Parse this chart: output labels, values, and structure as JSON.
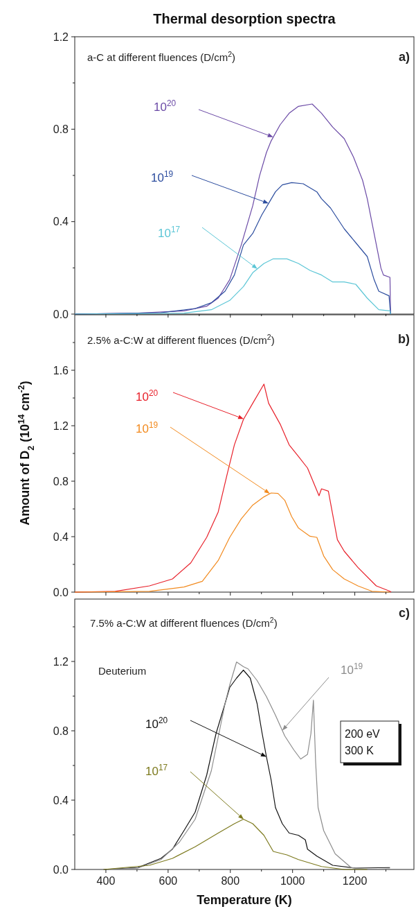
{
  "chart_data": [
    {
      "type": "line",
      "title": "Thermal desorption spectra",
      "xlim": [
        300,
        1390
      ],
      "ylim": [
        0,
        1.2
      ],
      "xticks": [
        400,
        {
          "value": 500,
          "label": null
        },
        600,
        {
          "value": 700,
          "label": null
        },
        800,
        {
          "value": 900,
          "label": null
        },
        1000,
        {
          "value": 1100,
          "label": null
        },
        1200,
        {
          "value": 1300,
          "label": null
        }
      ],
      "yticks": [
        {
          "value": 0,
          "label": "0.0"
        },
        {
          "value": 0.2,
          "label": null
        },
        {
          "value": 0.4,
          "label": "0.4"
        },
        {
          "value": 0.6,
          "label": null
        },
        {
          "value": 0.8,
          "label": "0.8"
        },
        {
          "value": 1.0,
          "label": null
        },
        {
          "value": 1.2,
          "label": "1.2"
        }
      ],
      "tick_labels": "y",
      "annotations": [
        "a-C at different fluences (D/cm$^{2}$)",
        "a)"
      ],
      "series": [
        {
          "name": "10$^{20}$",
          "color": "#6b4aa6",
          "x": [
            300,
            503,
            651,
            724,
            761,
            798,
            835,
            872,
            894,
            916,
            931,
            960,
            989,
            1019,
            1063,
            1093,
            1129,
            1166,
            1196,
            1225,
            1240,
            1262,
            1284,
            1292,
            1313,
            1315
          ],
          "values": [
            0,
            0.004,
            0.014,
            0.034,
            0.069,
            0.149,
            0.299,
            0.469,
            0.599,
            0.699,
            0.749,
            0.819,
            0.869,
            0.899,
            0.909,
            0.869,
            0.809,
            0.759,
            0.679,
            0.579,
            0.499,
            0.349,
            0.199,
            0.169,
            0.159,
            0
          ]
        },
        {
          "name": "10$^{19}$",
          "color": "#2b4c9e",
          "x": [
            300,
            577,
            687,
            739,
            783,
            813,
            842,
            872,
            901,
            923,
            945,
            967,
            997,
            1034,
            1078,
            1093,
            1122,
            1166,
            1203,
            1240,
            1262,
            1277,
            1310,
            1315
          ],
          "values": [
            0,
            0.006,
            0.024,
            0.049,
            0.099,
            0.169,
            0.299,
            0.349,
            0.429,
            0.479,
            0.529,
            0.559,
            0.569,
            0.564,
            0.529,
            0.499,
            0.459,
            0.369,
            0.309,
            0.249,
            0.149,
            0.099,
            0.079,
            0
          ]
        },
        {
          "name": "10$^{17}$",
          "color": "#5cc6d6",
          "x": [
            300,
            651,
            739,
            798,
            842,
            872,
            908,
            938,
            982,
            1019,
            1056,
            1093,
            1129,
            1166,
            1203,
            1240,
            1277,
            1313,
            1315
          ],
          "values": [
            0,
            0.004,
            0.019,
            0.059,
            0.119,
            0.179,
            0.219,
            0.239,
            0.239,
            0.219,
            0.189,
            0.169,
            0.139,
            0.139,
            0.129,
            0.069,
            0.019,
            0.014,
            0
          ]
        }
      ]
    },
    {
      "type": "line",
      "ylabel": "Amount of D$_{2}$ (10$^{14}$ cm$^{-2}$)",
      "xlim": [
        300,
        1390
      ],
      "ylim": [
        0,
        2.0
      ],
      "xticks": [
        400,
        {
          "value": 500,
          "label": null
        },
        600,
        {
          "value": 700,
          "label": null
        },
        800,
        {
          "value": 900,
          "label": null
        },
        1000,
        {
          "value": 1100,
          "label": null
        },
        1200,
        {
          "value": 1300,
          "label": null
        }
      ],
      "yticks": [
        {
          "value": 0,
          "label": "0.0"
        },
        {
          "value": 0.2,
          "label": null
        },
        {
          "value": 0.4,
          "label": "0.4"
        },
        {
          "value": 0.6,
          "label": null
        },
        {
          "value": 0.8,
          "label": "0.8"
        },
        {
          "value": 1.0,
          "label": null
        },
        {
          "value": 1.2,
          "label": "1.2"
        },
        {
          "value": 1.4,
          "label": null
        },
        {
          "value": 1.6,
          "label": "1.6"
        },
        {
          "value": 1.8,
          "label": null
        }
      ],
      "tick_labels": "y",
      "annotations": [
        "2.5% a-C:W at different fluences (D/cm$^{2}$)",
        "b)"
      ],
      "series": [
        {
          "name": "10$^{20}$",
          "color": "#e8202a",
          "x": [
            300,
            430,
            540,
            614,
            673,
            724,
            761,
            791,
            813,
            842,
            872,
            908,
            923,
            960,
            989,
            1019,
            1048,
            1085,
            1093,
            1115,
            1144,
            1166,
            1210,
            1269,
            1313,
            1317
          ],
          "values": [
            0,
            0.006,
            0.045,
            0.095,
            0.211,
            0.395,
            0.578,
            0.862,
            1.062,
            1.245,
            1.362,
            1.5,
            1.362,
            1.212,
            1.062,
            0.978,
            0.895,
            0.695,
            0.745,
            0.728,
            0.378,
            0.295,
            0.178,
            0.045,
            0.006,
            0
          ]
        },
        {
          "name": "10$^{19}$",
          "color": "#f28a1e",
          "x": [
            300,
            540,
            651,
            710,
            761,
            798,
            835,
            872,
            908,
            931,
            953,
            975,
            997,
            1019,
            1056,
            1078,
            1100,
            1129,
            1166,
            1210,
            1255,
            1313
          ],
          "values": [
            0,
            0.006,
            0.037,
            0.078,
            0.228,
            0.395,
            0.528,
            0.628,
            0.687,
            0.715,
            0.712,
            0.662,
            0.545,
            0.462,
            0.403,
            0.395,
            0.261,
            0.162,
            0.095,
            0.045,
            0.006,
            0
          ]
        }
      ]
    },
    {
      "type": "line",
      "xlabel": "Temperature (K)",
      "xlim": [
        300,
        1390
      ],
      "ylim": [
        0,
        1.56
      ],
      "xticks": [
        400,
        {
          "value": 500,
          "label": null
        },
        600,
        {
          "value": 700,
          "label": null
        },
        800,
        {
          "value": 900,
          "label": null
        },
        1000,
        {
          "value": 1100,
          "label": null
        },
        1200,
        {
          "value": 1300,
          "label": null
        }
      ],
      "yticks": [
        {
          "value": 0,
          "label": "0.0"
        },
        {
          "value": 0.2,
          "label": null
        },
        {
          "value": 0.4,
          "label": "0.4"
        },
        {
          "value": 0.6,
          "label": null
        },
        {
          "value": 0.8,
          "label": "0.8"
        },
        {
          "value": 1.0,
          "label": null
        },
        {
          "value": 1.2,
          "label": "1.2"
        },
        {
          "value": 1.4,
          "label": null
        }
      ],
      "annotations": [
        "7.5% a-C:W at different fluences (D/cm$^{2}$)",
        "c)",
        "Deuterium",
        "200 eV\n300 K"
      ],
      "series": [
        {
          "name": "10$^{20}$",
          "color": "#111111",
          "x": [
            393,
            503,
            577,
            614,
            651,
            687,
            724,
            754,
            783,
            798,
            820,
            842,
            864,
            886,
            901,
            916,
            931,
            945,
            967,
            989,
            1019,
            1041,
            1048,
            1078,
            1129,
            1203,
            1313
          ],
          "values": [
            0,
            0.011,
            0.064,
            0.117,
            0.224,
            0.331,
            0.544,
            0.784,
            0.957,
            1.05,
            1.104,
            1.15,
            1.104,
            0.957,
            0.797,
            0.65,
            0.517,
            0.357,
            0.264,
            0.21,
            0.197,
            0.171,
            0.117,
            0.077,
            0.024,
            0.008,
            0.011
          ]
        },
        {
          "name": "10$^{19}$",
          "color": "#8c8c8c",
          "x": [
            393,
            503,
            577,
            636,
            687,
            739,
            783,
            798,
            820,
            842,
            857,
            886,
            916,
            945,
            975,
            1004,
            1026,
            1048,
            1059,
            1067,
            1074,
            1082,
            1100,
            1137,
            1188,
            1240,
            1313
          ],
          "values": [
            0,
            0.008,
            0.057,
            0.157,
            0.29,
            0.57,
            0.957,
            1.064,
            1.197,
            1.17,
            1.157,
            1.09,
            0.997,
            0.89,
            0.77,
            0.69,
            0.637,
            0.664,
            0.784,
            0.977,
            0.624,
            0.357,
            0.224,
            0.09,
            0.011,
            0,
            0.004
          ]
        },
        {
          "name": "10$^{17}$",
          "color": "#7d7a1e",
          "x": [
            393,
            540,
            614,
            687,
            761,
            813,
            842,
            872,
            908,
            938,
            982,
            1019,
            1093,
            1166,
            1240
          ],
          "values": [
            0,
            0.024,
            0.064,
            0.131,
            0.21,
            0.264,
            0.29,
            0.264,
            0.197,
            0.104,
            0.084,
            0.057,
            0.017,
            0,
            0
          ]
        }
      ]
    }
  ]
}
